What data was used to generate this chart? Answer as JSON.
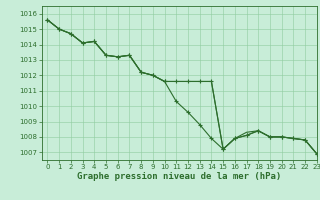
{
  "title": "Graphe pression niveau de la mer (hPa)",
  "background_color": "#c8edd8",
  "grid_color": "#8fcc9f",
  "line_color": "#2d6e2d",
  "xlim": [
    -0.5,
    23
  ],
  "ylim": [
    1006.5,
    1016.5
  ],
  "yticks": [
    1007,
    1008,
    1009,
    1010,
    1011,
    1012,
    1013,
    1014,
    1015,
    1016
  ],
  "xticks": [
    0,
    1,
    2,
    3,
    4,
    5,
    6,
    7,
    8,
    9,
    10,
    11,
    12,
    13,
    14,
    15,
    16,
    17,
    18,
    19,
    20,
    21,
    22,
    23
  ],
  "series": {
    "line1": [
      1015.6,
      1015.0,
      1014.7,
      1014.1,
      1014.2,
      1013.3,
      1013.2,
      1013.3,
      1012.2,
      1012.0,
      1011.6,
      1011.6,
      1011.6,
      1011.6,
      1011.6,
      1007.2,
      1007.9,
      1008.1,
      1008.4,
      1008.0,
      1008.0,
      1007.9,
      1007.8,
      1006.9
    ],
    "line2": [
      1015.6,
      1015.0,
      1014.7,
      1014.1,
      1014.2,
      1013.3,
      1013.2,
      1013.3,
      1012.2,
      1012.0,
      1011.6,
      1010.3,
      1009.6,
      1008.8,
      1007.9,
      1007.2,
      1007.9,
      1008.1,
      1008.4,
      1008.0,
      1008.0,
      1007.9,
      1007.8,
      1006.9
    ],
    "line3": [
      1015.6,
      1015.0,
      1014.7,
      1014.1,
      1014.2,
      1013.3,
      1013.2,
      1013.3,
      1012.2,
      1012.0,
      1011.6,
      1011.6,
      1011.6,
      1011.6,
      1011.6,
      1007.2,
      1007.9,
      1008.3,
      1008.4,
      1008.0,
      1008.0,
      1007.9,
      1007.8,
      1006.9
    ]
  },
  "tick_fontsize": 5,
  "label_fontsize": 6.5,
  "linewidth": 0.8,
  "markersize": 3
}
